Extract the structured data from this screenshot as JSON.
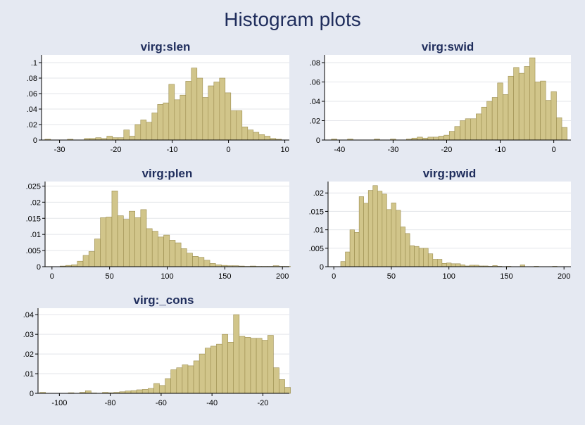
{
  "figure": {
    "title": "Histogram plots"
  },
  "colors": {
    "background": "#e5e9f2",
    "plot_bg": "#ffffff",
    "bar_fill": "#d1c58a",
    "bar_stroke": "#9a8c4e",
    "grid": "#e3e5ea",
    "title_color": "#1f2d5c"
  },
  "chart_data": [
    {
      "type": "bar",
      "title": "virg:slen",
      "xlabel": "",
      "ylabel": "",
      "xlim": [
        -33.2,
        10.8
      ],
      "ylim": [
        0,
        0.11
      ],
      "xticks": [
        -30,
        -20,
        -10,
        0,
        10
      ],
      "yticks": [
        0,
        0.02,
        0.04,
        0.06,
        0.08,
        0.1
      ],
      "yticklabels": [
        "0",
        ".02",
        ".04",
        ".06",
        ".08",
        ".1"
      ],
      "bin_start": -32.6,
      "bin_width": 1.0,
      "values": [
        0.001,
        0,
        0,
        0,
        0.001,
        0,
        0,
        0.002,
        0.002,
        0.003,
        0.002,
        0.005,
        0.003,
        0.003,
        0.013,
        0.005,
        0.02,
        0.026,
        0.023,
        0.035,
        0.046,
        0.048,
        0.072,
        0.052,
        0.058,
        0.076,
        0.093,
        0.08,
        0.055,
        0.07,
        0.075,
        0.08,
        0.061,
        0.038,
        0.038,
        0.017,
        0.013,
        0.01,
        0.007,
        0.005,
        0.002,
        0.001,
        0,
        0
      ]
    },
    {
      "type": "bar",
      "title": "virg:swid",
      "xlabel": "",
      "ylabel": "",
      "xlim": [
        -42.8,
        3.2
      ],
      "ylim": [
        0,
        0.088
      ],
      "xticks": [
        -40,
        -30,
        -20,
        -10,
        0
      ],
      "yticks": [
        0,
        0.02,
        0.04,
        0.06,
        0.08
      ],
      "yticklabels": [
        "0",
        ".02",
        ".04",
        ".06",
        ".08"
      ],
      "bin_start": -41.5,
      "bin_width": 1.0,
      "values": [
        0.001,
        0,
        0,
        0.001,
        0,
        0,
        0,
        0,
        0.001,
        0,
        0,
        0.001,
        0,
        0,
        0.001,
        0.002,
        0.003,
        0.002,
        0.003,
        0.003,
        0.004,
        0.005,
        0.009,
        0.014,
        0.02,
        0.022,
        0.022,
        0.027,
        0.034,
        0.04,
        0.044,
        0.059,
        0.047,
        0.066,
        0.075,
        0.069,
        0.076,
        0.085,
        0.06,
        0.061,
        0.041,
        0.05,
        0.023,
        0.013
      ]
    },
    {
      "type": "bar",
      "title": "virg:plen",
      "xlabel": "",
      "ylabel": "",
      "xlim": [
        -6,
        206
      ],
      "ylim": [
        0,
        0.0264
      ],
      "xticks": [
        0,
        50,
        100,
        150,
        200
      ],
      "yticks": [
        0,
        0.005,
        0.01,
        0.015,
        0.02,
        0.025
      ],
      "yticklabels": [
        "0",
        ".005",
        ".01",
        ".015",
        ".02",
        ".025"
      ],
      "bin_start": 7,
      "bin_width": 5,
      "values": [
        0.0002,
        0.0004,
        0.0006,
        0.0017,
        0.0035,
        0.0047,
        0.0086,
        0.0152,
        0.0154,
        0.0235,
        0.0158,
        0.0147,
        0.0172,
        0.0152,
        0.0177,
        0.0118,
        0.011,
        0.0092,
        0.0098,
        0.0082,
        0.0074,
        0.0056,
        0.0042,
        0.0032,
        0.0029,
        0.002,
        0.001,
        0.0006,
        0.0004,
        0.0003,
        0.0003,
        0.0002,
        0.0001,
        0.0002,
        0.0001,
        0.0001,
        0.0001,
        0.0003,
        0.0001,
        0.0001
      ]
    },
    {
      "type": "bar",
      "title": "virg:pwid",
      "xlabel": "",
      "ylabel": "",
      "xlim": [
        -5,
        206
      ],
      "ylim": [
        0,
        0.0231
      ],
      "xticks": [
        0,
        50,
        100,
        150,
        200
      ],
      "yticks": [
        0,
        0.005,
        0.01,
        0.015,
        0.02
      ],
      "yticklabels": [
        "0",
        ".005",
        ".01",
        ".015",
        ".02"
      ],
      "bin_start": 6,
      "bin_width": 4,
      "values": [
        0.0014,
        0.004,
        0.01,
        0.0093,
        0.019,
        0.0172,
        0.0207,
        0.022,
        0.0205,
        0.0197,
        0.0155,
        0.0173,
        0.0153,
        0.0108,
        0.009,
        0.0057,
        0.0055,
        0.005,
        0.005,
        0.0035,
        0.002,
        0.002,
        0.0009,
        0.001,
        0.0008,
        0.0008,
        0.0005,
        0.0002,
        0.0004,
        0.0004,
        0.0002,
        0.0002,
        0.0001,
        0.0003,
        0.0001,
        0,
        0.0001,
        0,
        0,
        0.0005,
        0,
        0,
        0.0001,
        0,
        0,
        0,
        0.0001
      ]
    },
    {
      "type": "bar",
      "title": "virg:_cons",
      "xlabel": "",
      "ylabel": "",
      "xlim": [
        -108.4,
        -9.6
      ],
      "ylim": [
        0,
        0.0433
      ],
      "xticks": [
        -100,
        -80,
        -60,
        -40,
        -20
      ],
      "yticks": [
        0,
        0.01,
        0.02,
        0.03,
        0.04
      ],
      "yticklabels": [
        "0",
        ".01",
        ".02",
        ".03",
        ".04"
      ],
      "bin_start": -107.7,
      "bin_width": 2.24,
      "values": [
        0.0005,
        0,
        0,
        0,
        0,
        0.0003,
        0,
        0.0005,
        0.0013,
        0.0002,
        0,
        0.0005,
        0.0003,
        0.0005,
        0.0008,
        0.0012,
        0.0014,
        0.0018,
        0.002,
        0.0025,
        0.005,
        0.004,
        0.0075,
        0.012,
        0.013,
        0.0145,
        0.014,
        0.0165,
        0.02,
        0.023,
        0.024,
        0.025,
        0.03,
        0.026,
        0.04,
        0.029,
        0.0285,
        0.028,
        0.028,
        0.027,
        0.0295,
        0.013,
        0.007,
        0.003
      ]
    }
  ]
}
